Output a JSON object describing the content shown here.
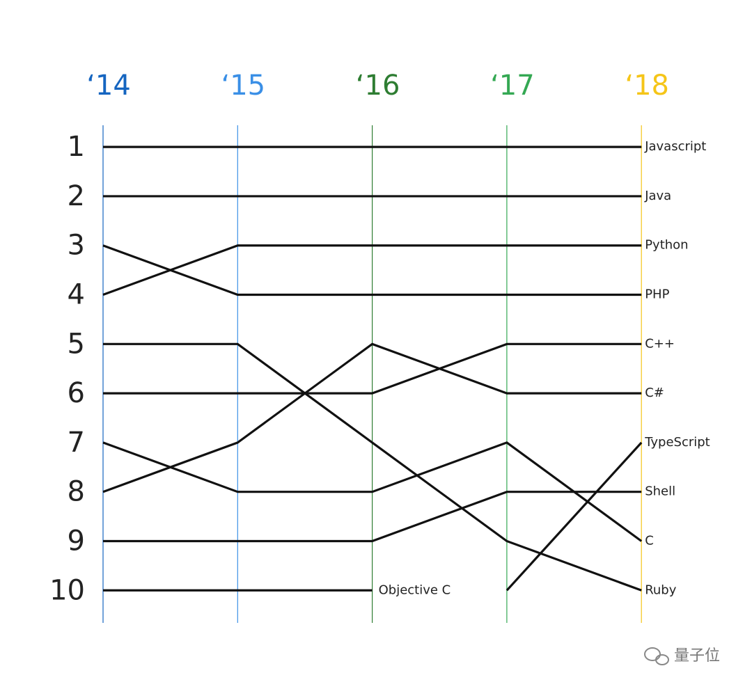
{
  "chart_data": {
    "type": "line",
    "categories": [
      "‘14",
      "‘15",
      "‘16",
      "‘17",
      "‘18"
    ],
    "category_colors": [
      "#1565c0",
      "#3a8fe6",
      "#2e7d32",
      "#34a853",
      "#f5c518"
    ],
    "line_color": "#111111",
    "inverted": true,
    "ylim": [
      0.56,
      10.66
    ],
    "yticks": [
      1,
      2,
      3,
      4,
      5,
      6,
      7,
      8,
      9,
      10
    ],
    "series": [
      {
        "name": "Javascript",
        "values": [
          1,
          1,
          1,
          1,
          1
        ]
      },
      {
        "name": "Java",
        "values": [
          2,
          2,
          2,
          2,
          2
        ]
      },
      {
        "name": "Python",
        "values": [
          4,
          3,
          3,
          3,
          3
        ]
      },
      {
        "name": "PHP",
        "values": [
          3,
          4,
          4,
          4,
          4
        ]
      },
      {
        "name": "C++",
        "values": [
          6,
          6,
          6,
          5,
          5
        ]
      },
      {
        "name": "C#",
        "values": [
          8,
          7,
          5,
          6,
          6
        ]
      },
      {
        "name": "TypeScript",
        "values": [
          null,
          null,
          null,
          10,
          7
        ]
      },
      {
        "name": "Shell",
        "values": [
          9,
          9,
          9,
          8,
          8
        ]
      },
      {
        "name": "C",
        "values": [
          7,
          8,
          8,
          7,
          9
        ]
      },
      {
        "name": "Ruby",
        "values": [
          5,
          5,
          7,
          9,
          10
        ]
      },
      {
        "name": "Objective C",
        "values": [
          10,
          10,
          10,
          null,
          null
        ]
      }
    ],
    "watermark": "量子位"
  }
}
